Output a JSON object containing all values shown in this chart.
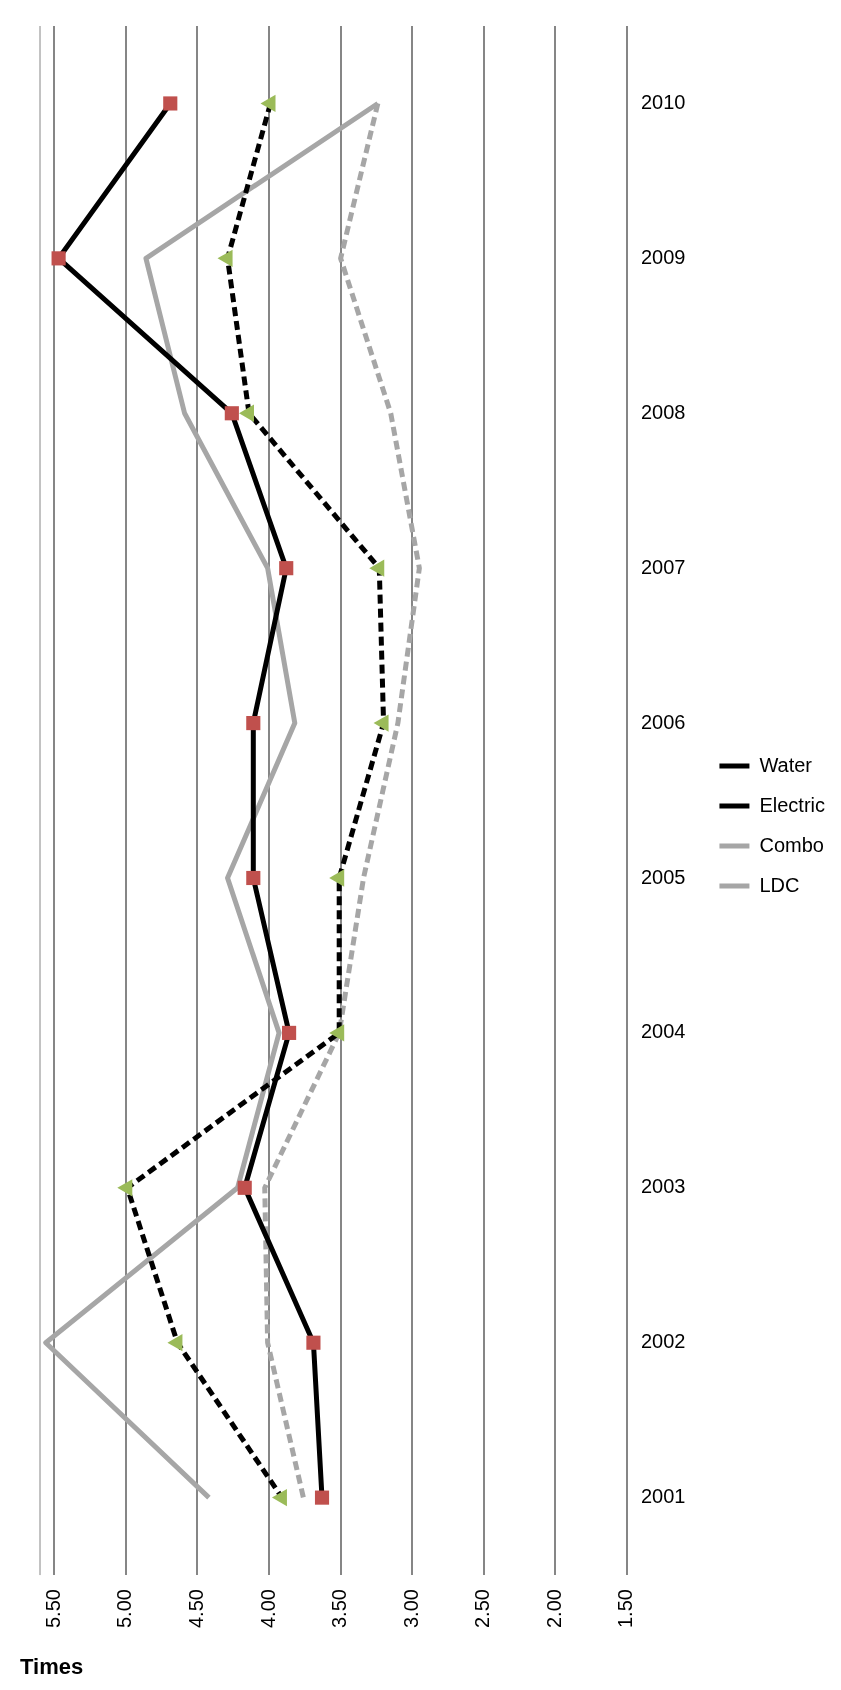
{
  "chart_data": {
    "type": "line",
    "orientation": "horizontal",
    "xlabel": "Times",
    "categories": [
      "2010",
      "2009",
      "2008",
      "2007",
      "2006",
      "2005",
      "2004",
      "2003",
      "2002",
      "2001"
    ],
    "xlim": [
      5.6,
      1.5
    ],
    "xticks": [
      {
        "value": 5.5,
        "label": "5.50"
      },
      {
        "value": 5,
        "label": "5.00"
      },
      {
        "value": 4.5,
        "label": "4.50"
      },
      {
        "value": 4,
        "label": "4.00"
      },
      {
        "value": 3.5,
        "label": "3.50"
      },
      {
        "value": 3,
        "label": "3.00"
      },
      {
        "value": 2.5,
        "label": "2.50"
      },
      {
        "value": 2,
        "label": "2.00"
      },
      {
        "value": 1.5,
        "label": "1.50"
      }
    ],
    "grid": "x",
    "legend": "right",
    "series": [
      {
        "name": "Water",
        "color": "#000000",
        "marker": "square",
        "line_style": "solid",
        "colors": [
          "#c0504d",
          "#c0504d",
          "#c0504d",
          "#c0504d",
          "#c0504d",
          "#c0504d",
          "#c0504d",
          "#c0504d",
          "#c0504d",
          "#c0504d"
        ],
        "values": [
          4.69,
          5.47,
          4.26,
          3.88,
          4.11,
          4.11,
          3.86,
          4.17,
          3.69,
          3.63
        ]
      },
      {
        "name": "Electric",
        "color": "#000000",
        "marker": "triangle",
        "line_style": "dashed",
        "colors": [
          "#9bbb59",
          "#9bbb59",
          "#9bbb59",
          "#9bbb59",
          "#9bbb59",
          "#9bbb59",
          "#9bbb59",
          "#9bbb59",
          "#9bbb59",
          "#9bbb59"
        ],
        "values": [
          3.99,
          4.29,
          4.14,
          3.23,
          3.2,
          3.51,
          3.51,
          4.99,
          4.64,
          3.91
        ]
      },
      {
        "name": "Combo",
        "color": "#a6a6a6",
        "marker": "none",
        "line_style": "solid",
        "values": [
          3.24,
          4.86,
          4.59,
          4.01,
          3.82,
          4.29,
          3.93,
          4.22,
          5.56,
          4.42
        ]
      },
      {
        "name": "LDC",
        "color": "#a6a6a6",
        "marker": "none",
        "line_style": "dashed",
        "values": [
          3.24,
          3.5,
          3.15,
          2.95,
          3.1,
          3.34,
          3.51,
          4.03,
          4.01,
          3.76
        ]
      }
    ]
  }
}
